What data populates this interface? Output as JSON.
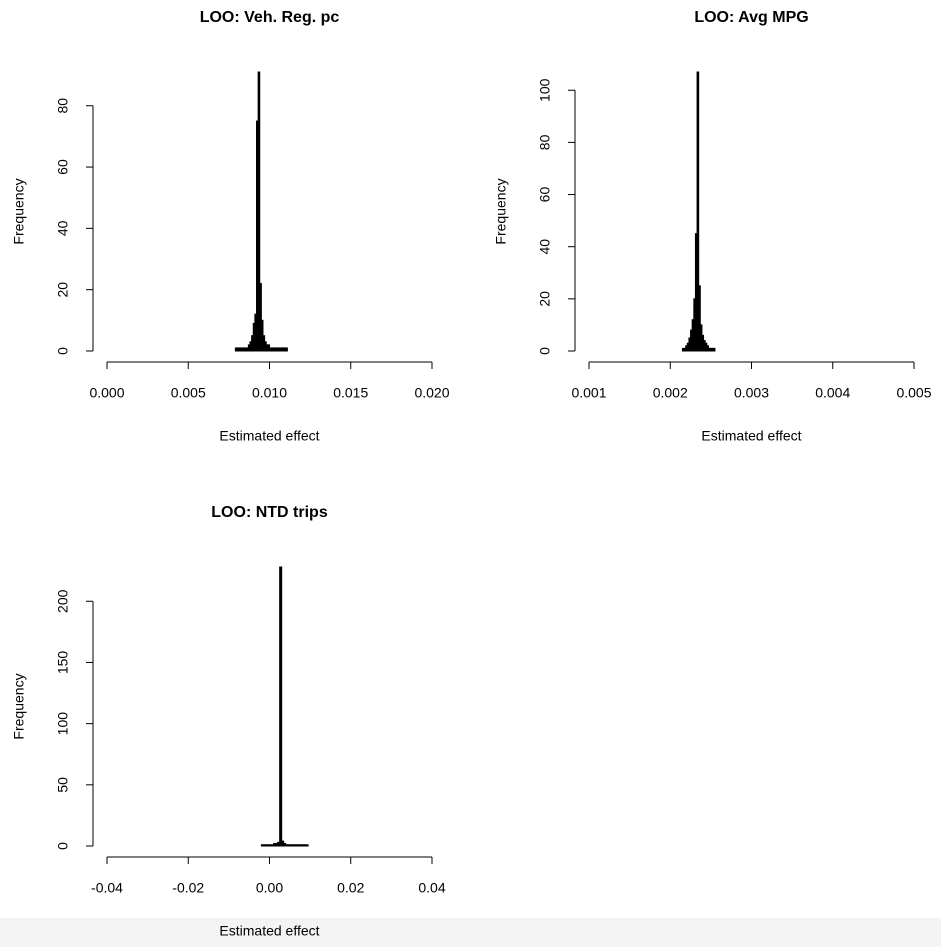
{
  "chart_data": [
    {
      "type": "histogram",
      "title": "LOO: Veh. Reg. pc",
      "x_label": "Estimated effect",
      "y_label": "Frequency",
      "color": "#000000",
      "bins": [
        0.0079,
        0.008,
        0.0081,
        0.0082,
        0.0083,
        0.0084,
        0.0085,
        0.0086,
        0.0087,
        0.0088,
        0.0089,
        0.009,
        0.0091,
        0.0092,
        0.0093,
        0.0094,
        0.0095,
        0.0096,
        0.0097,
        0.0098,
        0.0099,
        0.01,
        0.0101,
        0.0102,
        0.0103,
        0.0104,
        0.0105,
        0.0106,
        0.0107,
        0.0108,
        0.0109,
        0.011,
        0.0111
      ],
      "values": [
        1,
        1,
        1,
        1,
        1,
        1,
        1,
        1,
        2,
        3,
        5,
        9,
        12,
        75,
        91,
        22,
        10,
        5,
        3,
        2,
        2,
        1,
        1,
        1,
        1,
        1,
        1,
        1,
        1,
        1,
        1,
        1
      ],
      "xlim": [
        0,
        0.02
      ],
      "xticks": [
        {
          "value": 0,
          "label": "0.000"
        },
        0.005,
        {
          "value": 0.01,
          "label": "0.010"
        },
        0.015,
        {
          "value": 0.02,
          "label": "0.020"
        }
      ],
      "ylim": [
        0,
        91
      ],
      "yticks": [
        0,
        20,
        40,
        60,
        80
      ]
    },
    {
      "type": "histogram",
      "title": "LOO: Avg MPG",
      "x_label": "Estimated effect",
      "y_label": "Frequency",
      "color": "#000000",
      "bins": [
        0.00215,
        0.00217,
        0.00219,
        0.00221,
        0.00223,
        0.00225,
        0.00227,
        0.00229,
        0.00231,
        0.00233,
        0.00235,
        0.00237,
        0.00239,
        0.00241,
        0.00243,
        0.00245,
        0.00247,
        0.00249,
        0.00251,
        0.00253,
        0.00255
      ],
      "values": [
        1,
        1,
        2,
        3,
        5,
        8,
        12,
        20,
        45,
        107,
        25,
        10,
        6,
        4,
        3,
        2,
        1,
        1,
        1,
        1
      ],
      "xlim": [
        0.001,
        0.005
      ],
      "xticks": [
        0.001,
        0.002,
        0.003,
        0.004,
        0.005
      ],
      "ylim": [
        0,
        107
      ],
      "yticks": [
        0,
        20,
        40,
        60,
        80,
        100
      ]
    },
    {
      "type": "histogram",
      "title": "LOO: NTD trips",
      "x_label": "Estimated effect",
      "y_label": "Frequency",
      "color": "#000000",
      "bins": [
        -0.002,
        -0.0015,
        -0.001,
        -0.0005,
        0,
        0.0005,
        0.001,
        0.0015,
        0.002,
        0.0025,
        0.003,
        0.0035,
        0.004,
        0.0045,
        0.005,
        0.0055,
        0.006,
        0.0065,
        0.007,
        0.0075,
        0.008,
        0.0085,
        0.009,
        0.0095
      ],
      "values": [
        1,
        1,
        1,
        1,
        1,
        1,
        2,
        2,
        3,
        228,
        4,
        2,
        1,
        1,
        1,
        1,
        1,
        1,
        1,
        1,
        1,
        1,
        1
      ],
      "xlim": [
        -0.04,
        0.04
      ],
      "xticks": [
        -0.04,
        -0.02,
        {
          "value": 0,
          "label": "0.00"
        },
        0.02,
        0.04
      ],
      "ylim": [
        0,
        228
      ],
      "yticks": [
        0,
        50,
        100,
        150,
        200
      ]
    }
  ]
}
